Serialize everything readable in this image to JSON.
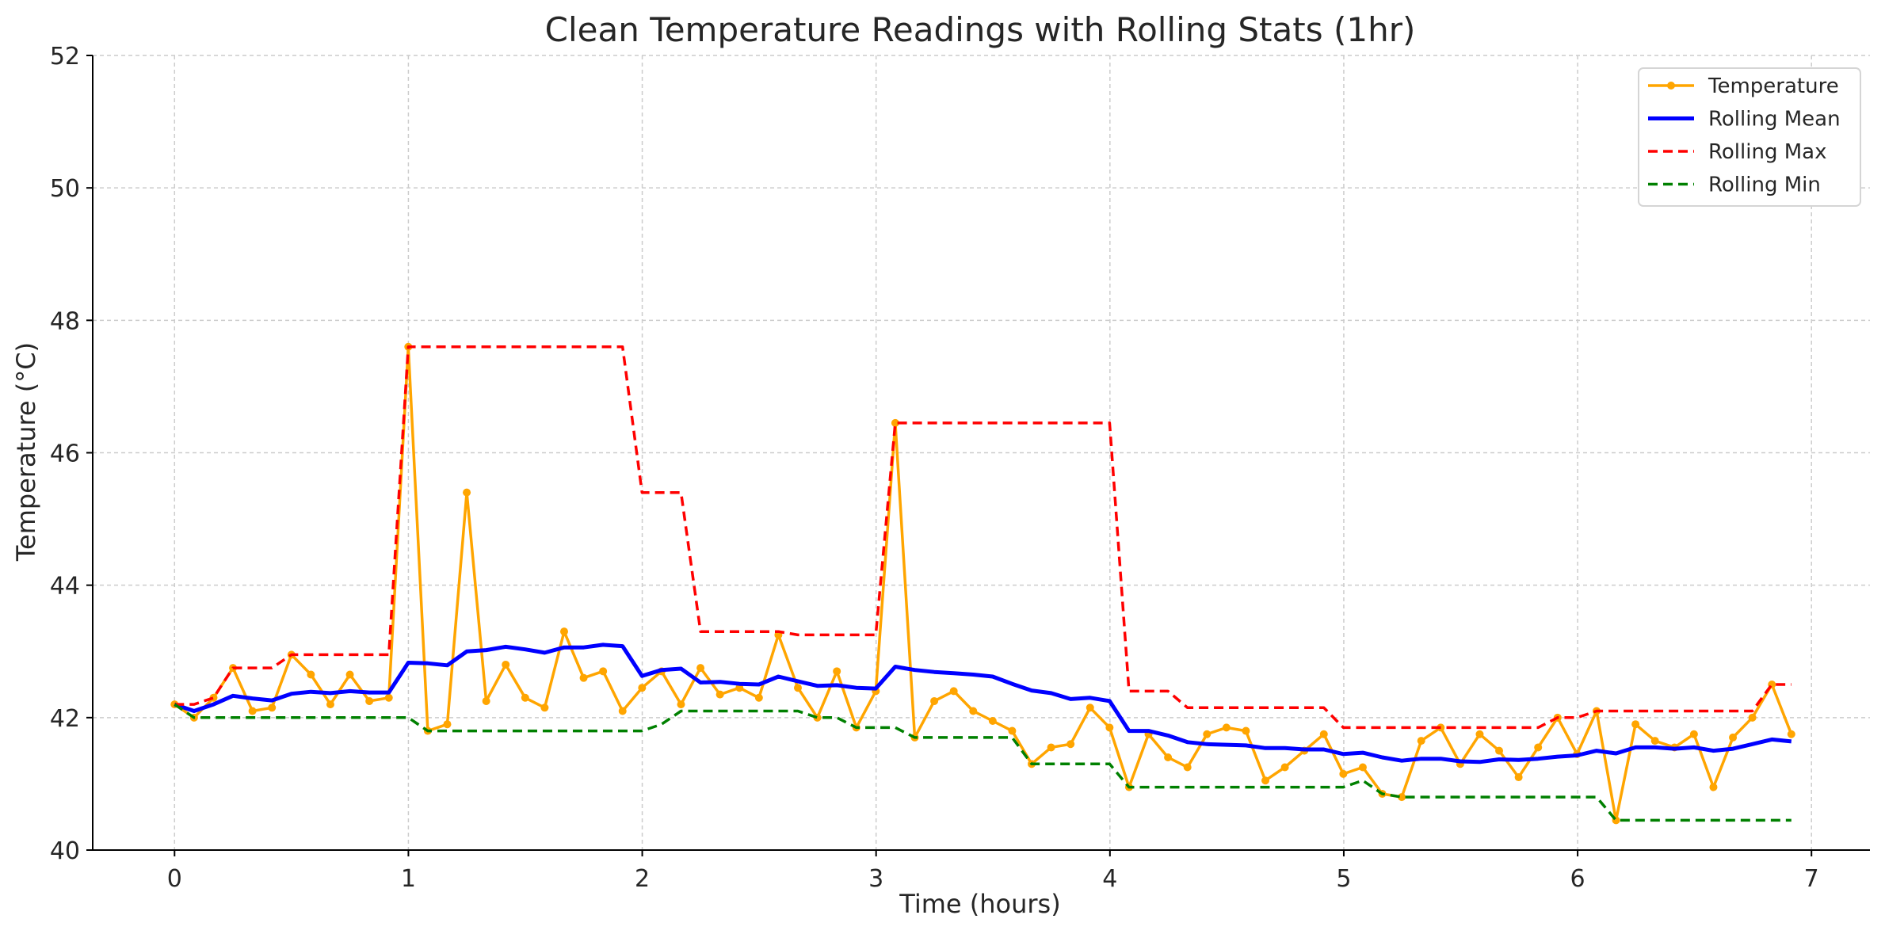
{
  "chart_data": {
    "type": "line",
    "title": "Clean Temperature Readings with Rolling Stats (1hr)",
    "xlabel": "Time (hours)",
    "ylabel": "Temperature (°C)",
    "xlim": [
      -0.35,
      7.25
    ],
    "ylim": [
      40,
      52
    ],
    "xticks": [
      0,
      1,
      2,
      3,
      4,
      5,
      6,
      7
    ],
    "yticks": [
      40,
      42,
      44,
      46,
      48,
      50,
      52
    ],
    "grid": true,
    "legend_position": "top-right",
    "x_step": 0.0833,
    "series": [
      {
        "name": "Temperature",
        "color": "#FFA500",
        "style": "solid-with-markers",
        "values": [
          42.2,
          42.0,
          42.3,
          42.75,
          42.1,
          42.15,
          42.95,
          42.65,
          42.2,
          42.65,
          42.25,
          42.3,
          47.6,
          41.8,
          41.9,
          45.4,
          42.25,
          42.8,
          42.3,
          42.15,
          43.3,
          42.6,
          42.7,
          42.1,
          42.45,
          42.7,
          42.2,
          42.75,
          42.35,
          42.45,
          42.3,
          43.25,
          42.45,
          42.0,
          42.7,
          41.85,
          42.4,
          46.45,
          41.7,
          42.25,
          42.4,
          42.1,
          41.95,
          41.8,
          41.3,
          41.55,
          41.6,
          42.15,
          41.85,
          40.95,
          41.75,
          41.4,
          41.25,
          41.75,
          41.85,
          41.8,
          41.05,
          41.25,
          41.5,
          41.75,
          41.15,
          41.25,
          40.85,
          40.8,
          41.65,
          41.85,
          41.3,
          41.75,
          41.5,
          41.1,
          41.55,
          42.0,
          41.45,
          42.1,
          40.45,
          41.9,
          41.65,
          41.55,
          41.75,
          40.95,
          41.7,
          42.0,
          42.5,
          41.75
        ]
      },
      {
        "name": "Rolling Mean",
        "color": "#0000FF",
        "style": "solid",
        "values": [
          42.2,
          42.1,
          42.2,
          42.33,
          42.29,
          42.26,
          42.36,
          42.39,
          42.37,
          42.4,
          42.38,
          42.38,
          42.83,
          42.82,
          42.79,
          43.0,
          43.02,
          43.07,
          43.03,
          42.98,
          43.06,
          43.06,
          43.1,
          43.08,
          42.63,
          42.72,
          42.74,
          42.53,
          42.54,
          42.51,
          42.5,
          42.62,
          42.55,
          42.48,
          42.49,
          42.45,
          42.44,
          42.77,
          42.72,
          42.69,
          42.67,
          42.65,
          42.62,
          42.51,
          42.41,
          42.37,
          42.28,
          42.3,
          42.25,
          41.8,
          41.8,
          41.73,
          41.63,
          41.6,
          41.59,
          41.58,
          41.54,
          41.54,
          41.52,
          41.52,
          41.45,
          41.47,
          41.4,
          41.35,
          41.38,
          41.38,
          41.34,
          41.33,
          41.37,
          41.36,
          41.38,
          41.41,
          41.43,
          41.5,
          41.46,
          41.55,
          41.55,
          41.53,
          41.55,
          41.5,
          41.53,
          41.6,
          41.67,
          41.64
        ]
      },
      {
        "name": "Rolling Max",
        "color": "#FF0000",
        "style": "dashed",
        "values": [
          42.2,
          42.2,
          42.3,
          42.75,
          42.75,
          42.75,
          42.95,
          42.95,
          42.95,
          42.95,
          42.95,
          42.95,
          47.6,
          47.6,
          47.6,
          47.6,
          47.6,
          47.6,
          47.6,
          47.6,
          47.6,
          47.6,
          47.6,
          47.6,
          45.4,
          45.4,
          45.4,
          43.3,
          43.3,
          43.3,
          43.3,
          43.3,
          43.25,
          43.25,
          43.25,
          43.25,
          43.25,
          46.45,
          46.45,
          46.45,
          46.45,
          46.45,
          46.45,
          46.45,
          46.45,
          46.45,
          46.45,
          46.45,
          46.45,
          42.4,
          42.4,
          42.4,
          42.15,
          42.15,
          42.15,
          42.15,
          42.15,
          42.15,
          42.15,
          42.15,
          41.85,
          41.85,
          41.85,
          41.85,
          41.85,
          41.85,
          41.85,
          41.85,
          41.85,
          41.85,
          41.85,
          42.0,
          42.0,
          42.1,
          42.1,
          42.1,
          42.1,
          42.1,
          42.1,
          42.1,
          42.1,
          42.1,
          42.5,
          42.5
        ]
      },
      {
        "name": "Rolling Min",
        "color": "#008000",
        "style": "dashed",
        "values": [
          42.2,
          42.0,
          42.0,
          42.0,
          42.0,
          42.0,
          42.0,
          42.0,
          42.0,
          42.0,
          42.0,
          42.0,
          42.0,
          41.8,
          41.8,
          41.8,
          41.8,
          41.8,
          41.8,
          41.8,
          41.8,
          41.8,
          41.8,
          41.8,
          41.8,
          41.9,
          42.1,
          42.1,
          42.1,
          42.1,
          42.1,
          42.1,
          42.1,
          42.0,
          42.0,
          41.85,
          41.85,
          41.85,
          41.7,
          41.7,
          41.7,
          41.7,
          41.7,
          41.7,
          41.3,
          41.3,
          41.3,
          41.3,
          41.3,
          40.95,
          40.95,
          40.95,
          40.95,
          40.95,
          40.95,
          40.95,
          40.95,
          40.95,
          40.95,
          40.95,
          40.95,
          41.05,
          40.85,
          40.8,
          40.8,
          40.8,
          40.8,
          40.8,
          40.8,
          40.8,
          40.8,
          40.8,
          40.8,
          40.8,
          40.45,
          40.45,
          40.45,
          40.45,
          40.45,
          40.45,
          40.45,
          40.45,
          40.45,
          40.45
        ]
      }
    ]
  }
}
